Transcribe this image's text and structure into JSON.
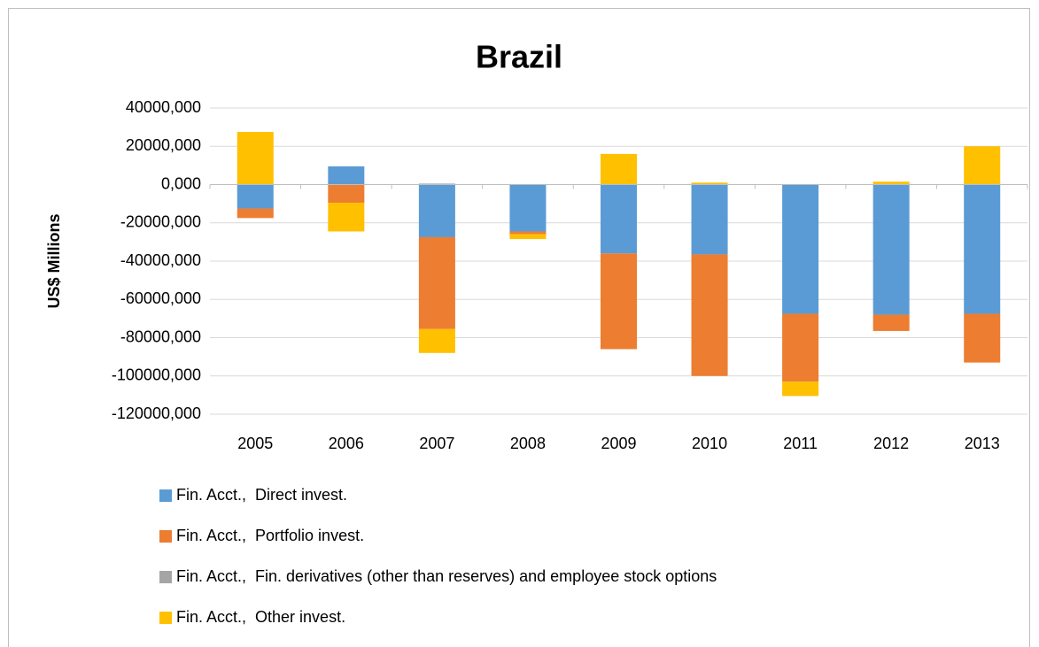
{
  "chart_data": {
    "type": "bar",
    "stacked": true,
    "title": "Brazil",
    "y_label": "US$ Millions",
    "categories": [
      "2005",
      "2006",
      "2007",
      "2008",
      "2009",
      "2010",
      "2011",
      "2012",
      "2013"
    ],
    "series": [
      {
        "name": "Fin. Acct.,  Direct invest.",
        "color": "#5b9bd5",
        "values": [
          -12500,
          9500,
          -27500,
          -24500,
          -36000,
          -36500,
          -67500,
          -68000,
          -67500
        ]
      },
      {
        "name": "Fin. Acct.,  Portfolio invest.",
        "color": "#ed7d31",
        "values": [
          -5000,
          -9500,
          -48000,
          -1500,
          -50000,
          -63500,
          -35500,
          -8500,
          -25500
        ]
      },
      {
        "name": "Fin. Acct.,  Fin. derivatives (other than reserves) and employee stock options",
        "color": "#a5a5a5",
        "values": [
          0,
          0,
          500,
          0,
          0,
          0,
          0,
          0,
          0
        ]
      },
      {
        "name": "Fin. Acct.,  Other invest.",
        "color": "#ffc000",
        "values": [
          27500,
          -15000,
          -12500,
          -2500,
          16000,
          1000,
          -7500,
          1500,
          20000
        ]
      }
    ],
    "ylim": [
      -120000,
      40000
    ],
    "yticks": [
      {
        "value": 40000,
        "label": "40000,000"
      },
      {
        "value": 20000,
        "label": "20000,000"
      },
      {
        "value": 0,
        "label": "0,000"
      },
      {
        "value": -20000,
        "label": "-20000,000"
      },
      {
        "value": -40000,
        "label": "-40000,000"
      },
      {
        "value": -60000,
        "label": "-60000,000"
      },
      {
        "value": -80000,
        "label": "-80000,000"
      },
      {
        "value": -100000,
        "label": "-100000,000"
      },
      {
        "value": -120000,
        "label": "-120000,000"
      }
    ],
    "grid": true,
    "legend": "bottom"
  }
}
